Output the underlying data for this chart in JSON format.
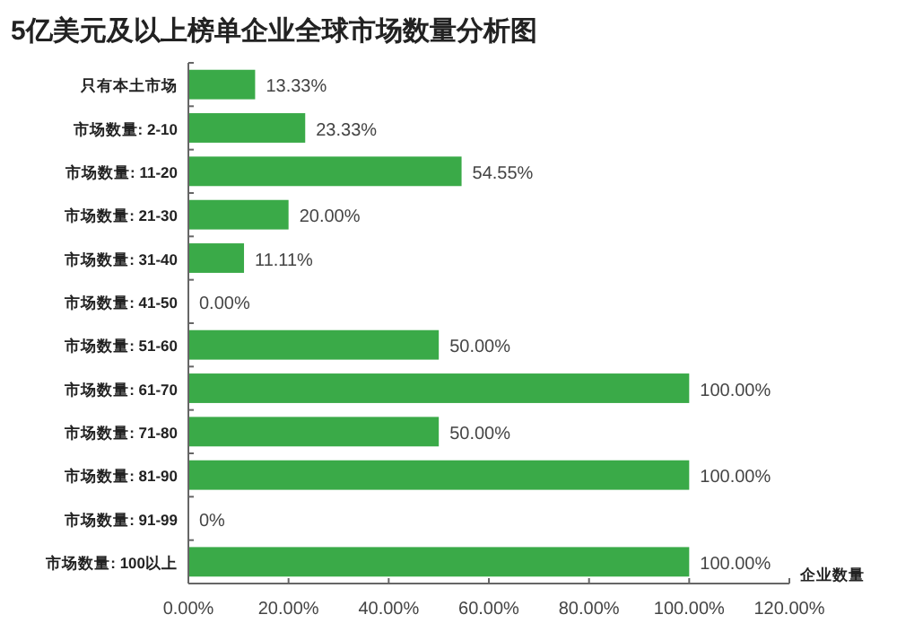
{
  "chart_data": {
    "type": "bar",
    "orientation": "horizontal",
    "title": "5亿美元及以上榜单企业全球市场数量分析图",
    "xlabel": "企业数量",
    "categories": [
      "只有本土市场",
      "市场数量: 2-10",
      "市场数量: 11-20",
      "市场数量: 21-30",
      "市场数量: 31-40",
      "市场数量: 41-50",
      "市场数量: 51-60",
      "市场数量: 61-70",
      "市场数量: 71-80",
      "市场数量: 81-90",
      "市场数量: 91-99",
      "市场数量: 100以上"
    ],
    "values": [
      13.33,
      23.33,
      54.55,
      20.0,
      11.11,
      0.0,
      50.0,
      100.0,
      50.0,
      100.0,
      0,
      100.0
    ],
    "value_labels": [
      "13.33%",
      "23.33%",
      "54.55%",
      "20.00%",
      "11.11%",
      "0.00%",
      "50.00%",
      "100.00%",
      "50.00%",
      "100.00%",
      "0%",
      "100.00%"
    ],
    "color": "#3aaa48",
    "xlim": [
      0,
      120
    ],
    "xticks": [
      {
        "value": 0,
        "label": "0.00%"
      },
      {
        "value": 20,
        "label": "20.00%"
      },
      {
        "value": 40,
        "label": "40.00%"
      },
      {
        "value": 60,
        "label": "60.00%"
      },
      {
        "value": 80,
        "label": "80.00%"
      },
      {
        "value": 100,
        "label": "100.00%"
      },
      {
        "value": 120,
        "label": "120.00%"
      }
    ],
    "grid": false
  }
}
